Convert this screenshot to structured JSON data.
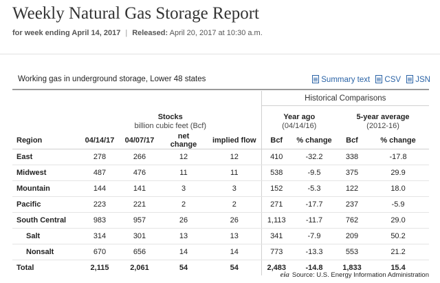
{
  "header": {
    "title": "Weekly Natural Gas Storage Report",
    "week_label": "for week ending April 14, 2017",
    "separator": "|",
    "released_label": "Released:",
    "released_value": "April 20, 2017 at 10:30 a.m."
  },
  "table_title": "Working gas in underground storage, Lower 48 states",
  "links": [
    {
      "label": "Summary text",
      "icon": "document-icon"
    },
    {
      "label": "CSV",
      "icon": "document-icon"
    },
    {
      "label": "JSN",
      "icon": "document-icon"
    }
  ],
  "historical_label": "Historical Comparisons",
  "groups": {
    "stocks": {
      "title": "Stocks",
      "subtitle": "billion cubic feet (Bcf)"
    },
    "year_ago": {
      "title": "Year ago",
      "subtitle": "(04/14/16)"
    },
    "five_year": {
      "title": "5-year average",
      "subtitle": "(2012-16)"
    }
  },
  "columns": [
    "Region",
    "04/14/17",
    "04/07/17",
    "net change",
    "implied flow",
    "Bcf",
    "% change",
    "Bcf",
    "% change"
  ],
  "rows": [
    {
      "region": "East",
      "v": [
        "278",
        "266",
        "12",
        "12",
        "410",
        "-32.2",
        "338",
        "-17.8"
      ]
    },
    {
      "region": "Midwest",
      "v": [
        "487",
        "476",
        "11",
        "11",
        "538",
        "-9.5",
        "375",
        "29.9"
      ]
    },
    {
      "region": "Mountain",
      "v": [
        "144",
        "141",
        "3",
        "3",
        "152",
        "-5.3",
        "122",
        "18.0"
      ]
    },
    {
      "region": "Pacific",
      "v": [
        "223",
        "221",
        "2",
        "2",
        "271",
        "-17.7",
        "237",
        "-5.9"
      ]
    },
    {
      "region": "South Central",
      "v": [
        "983",
        "957",
        "26",
        "26",
        "1,113",
        "-11.7",
        "762",
        "29.0"
      ]
    },
    {
      "region": "Salt",
      "v": [
        "314",
        "301",
        "13",
        "13",
        "341",
        "-7.9",
        "209",
        "50.2"
      ]
    },
    {
      "region": "Nonsalt",
      "v": [
        "670",
        "656",
        "14",
        "14",
        "773",
        "-13.3",
        "553",
        "21.2"
      ]
    },
    {
      "region": "Total",
      "v": [
        "2,115",
        "2,061",
        "54",
        "54",
        "2,483",
        "-14.8",
        "1,833",
        "15.4"
      ]
    }
  ],
  "source": {
    "logo_text": "eia",
    "text": "Source:  U.S. Energy Information Administration"
  }
}
